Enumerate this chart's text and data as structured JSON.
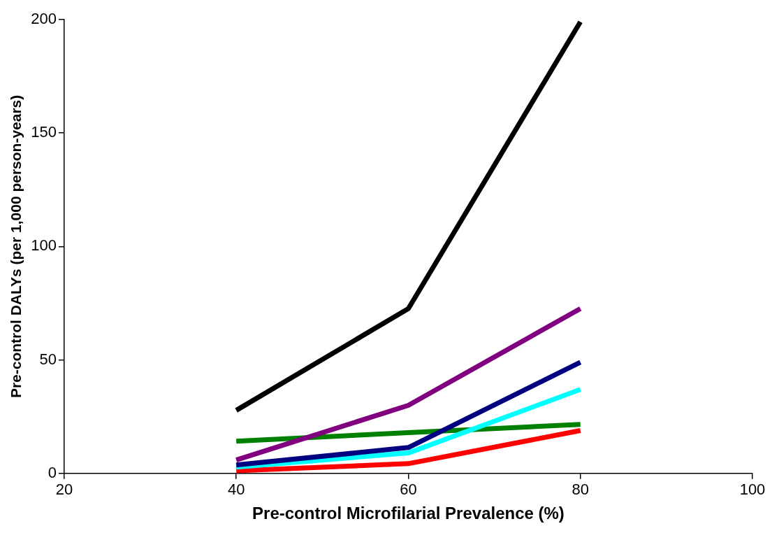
{
  "chart_data": {
    "type": "line",
    "xlabel": "Pre-control Microfilarial Prevalence (%)",
    "ylabel": "Pre-control DALYs (per 1,000 person-years)",
    "x": [
      40,
      60,
      80
    ],
    "series": [
      {
        "color": "#000000",
        "values": [
          27.8,
          72.6,
          199
        ]
      },
      {
        "color": "#800080",
        "values": [
          5.9,
          30,
          72.6
        ]
      },
      {
        "color": "#000080",
        "values": [
          3.7,
          11.4,
          49
        ]
      },
      {
        "color": "#00ffff",
        "values": [
          2.8,
          9,
          37
        ]
      },
      {
        "color": "#008000",
        "values": [
          14.2,
          18,
          21.6
        ]
      },
      {
        "color": "#ff0000",
        "values": [
          1.2,
          4.3,
          18.9
        ]
      }
    ],
    "xlim": [
      20,
      100
    ],
    "xticks": [
      20,
      40,
      60,
      80,
      100
    ],
    "ylim": [
      0,
      200
    ],
    "yticks": [
      0,
      50,
      100,
      150,
      200
    ],
    "grid": false,
    "legend": false,
    "marker": "none",
    "line_style": "solid"
  }
}
